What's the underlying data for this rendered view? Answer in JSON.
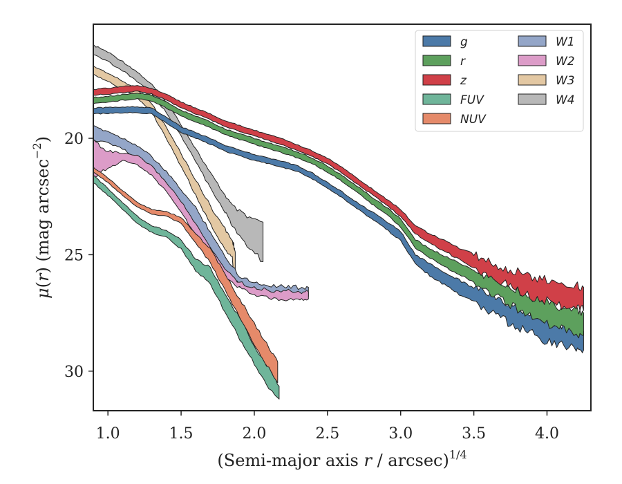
{
  "chart_data": {
    "type": "area",
    "title": "",
    "xlabel": "(Semi-major axis r / arcsec)",
    "xlabel_parts": {
      "prefix": "(Semi-major axis ",
      "var": "r",
      "suffix": " / arcsec)",
      "exponent": "1/4"
    },
    "ylabel": "μ(r) (mag arcsec⁻²)",
    "ylabel_parts": {
      "mu": "μ",
      "open": "(",
      "var": "r",
      "close": ") (mag arcsec",
      "exponent": "−2",
      "end": ")"
    },
    "xlim": [
      0.9,
      4.3
    ],
    "ylim": [
      31.7,
      15.1
    ],
    "y_inverted": true,
    "xticks": [
      1.0,
      1.5,
      2.0,
      2.5,
      3.0,
      3.5,
      4.0
    ],
    "xtick_labels": [
      "1.0",
      "1.5",
      "2.0",
      "2.5",
      "3.0",
      "3.5",
      "4.0"
    ],
    "yticks": [
      20,
      25,
      30
    ],
    "ytick_labels": [
      "20",
      "25",
      "30"
    ],
    "grid": false,
    "legend": {
      "placement": "top-right",
      "columns": 2
    },
    "series": [
      {
        "name": "g",
        "color": "#4c7aa8",
        "x": [
          0.9,
          1.0,
          1.1,
          1.2,
          1.3,
          1.4,
          1.5,
          1.6,
          1.7,
          1.8,
          1.9,
          2.0,
          2.1,
          2.2,
          2.3,
          2.4,
          2.5,
          2.6,
          2.7,
          2.8,
          2.9,
          3.0,
          3.1,
          3.2,
          3.3,
          3.4,
          3.5,
          3.6,
          3.7,
          3.8,
          3.9,
          4.0,
          4.1,
          4.2,
          4.25
        ],
        "lower": [
          18.7,
          18.68,
          18.65,
          18.64,
          18.7,
          19.1,
          19.5,
          19.75,
          20.0,
          20.3,
          20.5,
          20.7,
          20.85,
          21.0,
          21.2,
          21.5,
          21.9,
          22.3,
          22.75,
          23.15,
          23.55,
          24.0,
          25.0,
          25.4,
          25.75,
          26.1,
          26.4,
          26.7,
          27.0,
          27.3,
          27.55,
          27.8,
          28.0,
          28.2,
          28.3
        ],
        "upper": [
          18.95,
          18.93,
          18.9,
          18.9,
          18.95,
          19.35,
          19.75,
          20.0,
          20.25,
          20.55,
          20.75,
          20.95,
          21.1,
          21.25,
          21.45,
          21.75,
          22.15,
          22.55,
          23.0,
          23.45,
          23.9,
          24.4,
          25.4,
          25.9,
          26.3,
          26.7,
          27.0,
          27.4,
          27.8,
          28.1,
          28.4,
          28.7,
          28.9,
          29.0,
          29.1
        ]
      },
      {
        "name": "r",
        "color": "#5da05d",
        "x": [
          0.9,
          1.0,
          1.1,
          1.2,
          1.3,
          1.4,
          1.5,
          1.6,
          1.7,
          1.8,
          1.9,
          2.0,
          2.1,
          2.2,
          2.3,
          2.4,
          2.5,
          2.6,
          2.7,
          2.8,
          2.9,
          3.0,
          3.1,
          3.2,
          3.3,
          3.4,
          3.5,
          3.6,
          3.7,
          3.8,
          3.9,
          4.0,
          4.1,
          4.2,
          4.25
        ],
        "lower": [
          18.25,
          18.2,
          18.12,
          18.05,
          18.15,
          18.45,
          18.8,
          19.05,
          19.3,
          19.6,
          19.8,
          20.0,
          20.2,
          20.4,
          20.6,
          20.85,
          21.2,
          21.6,
          22.05,
          22.5,
          22.95,
          23.45,
          24.35,
          24.75,
          25.05,
          25.35,
          25.65,
          25.95,
          26.25,
          26.55,
          26.85,
          27.05,
          27.25,
          27.4,
          27.5
        ],
        "upper": [
          18.5,
          18.45,
          18.37,
          18.3,
          18.4,
          18.7,
          19.05,
          19.3,
          19.55,
          19.85,
          20.05,
          20.25,
          20.45,
          20.65,
          20.85,
          21.1,
          21.45,
          21.85,
          22.3,
          22.8,
          23.25,
          23.8,
          24.7,
          25.15,
          25.5,
          25.85,
          26.2,
          26.6,
          27.0,
          27.35,
          27.7,
          28.0,
          28.2,
          28.35,
          28.45
        ]
      },
      {
        "name": "z",
        "color": "#d04048",
        "x": [
          0.9,
          1.0,
          1.1,
          1.2,
          1.3,
          1.4,
          1.5,
          1.6,
          1.7,
          1.8,
          1.9,
          2.0,
          2.1,
          2.2,
          2.3,
          2.4,
          2.5,
          2.6,
          2.7,
          2.8,
          2.9,
          3.0,
          3.1,
          3.2,
          3.3,
          3.4,
          3.5,
          3.6,
          3.7,
          3.8,
          3.9,
          4.0,
          4.1,
          4.2,
          4.25
        ],
        "lower": [
          17.9,
          17.85,
          17.78,
          17.72,
          17.85,
          18.1,
          18.45,
          18.7,
          18.95,
          19.25,
          19.45,
          19.65,
          19.85,
          20.05,
          20.3,
          20.55,
          20.85,
          21.25,
          21.7,
          22.15,
          22.6,
          23.05,
          23.75,
          24.1,
          24.4,
          24.7,
          25.0,
          25.3,
          25.55,
          25.75,
          25.95,
          26.1,
          26.25,
          26.35,
          26.4
        ],
        "upper": [
          18.15,
          18.1,
          18.03,
          17.97,
          18.1,
          18.35,
          18.7,
          18.95,
          19.2,
          19.5,
          19.7,
          19.9,
          20.1,
          20.3,
          20.55,
          20.8,
          21.1,
          21.5,
          21.95,
          22.4,
          22.85,
          23.35,
          24.1,
          24.5,
          24.85,
          25.2,
          25.55,
          25.9,
          26.2,
          26.5,
          26.8,
          27.0,
          27.15,
          27.3,
          27.4
        ]
      },
      {
        "name": "FUV",
        "color": "#6fb59a",
        "x": [
          0.9,
          1.0,
          1.1,
          1.2,
          1.3,
          1.4,
          1.5,
          1.6,
          1.7,
          1.8,
          1.9,
          2.0,
          2.1,
          2.17
        ],
        "lower": [
          21.6,
          22.15,
          22.75,
          23.35,
          23.75,
          23.95,
          24.35,
          25.2,
          25.55,
          26.7,
          27.75,
          28.9,
          29.9,
          30.65
        ],
        "upper": [
          21.9,
          22.45,
          23.05,
          23.65,
          24.05,
          24.25,
          24.75,
          25.7,
          26.25,
          27.5,
          28.6,
          29.7,
          30.7,
          31.2
        ]
      },
      {
        "name": "NUV",
        "color": "#e58a6a",
        "x": [
          0.9,
          1.0,
          1.1,
          1.2,
          1.3,
          1.4,
          1.5,
          1.6,
          1.7,
          1.8,
          1.9,
          2.0,
          2.1,
          2.16
        ],
        "lower": [
          21.25,
          21.7,
          22.25,
          22.75,
          23.05,
          23.15,
          23.4,
          24.1,
          24.75,
          25.85,
          26.9,
          27.95,
          29.0,
          29.6
        ],
        "upper": [
          21.45,
          21.9,
          22.45,
          22.95,
          23.25,
          23.35,
          23.65,
          24.5,
          25.35,
          26.55,
          27.65,
          28.85,
          29.95,
          30.5
        ]
      },
      {
        "name": "W1",
        "color": "#94a6c8",
        "x": [
          0.9,
          1.0,
          1.1,
          1.2,
          1.3,
          1.4,
          1.5,
          1.6,
          1.7,
          1.8,
          1.9,
          2.0,
          2.1,
          2.2,
          2.3,
          2.37
        ],
        "lower": [
          19.5,
          19.7,
          20.0,
          20.3,
          20.8,
          21.45,
          22.2,
          23.0,
          24.0,
          25.1,
          25.9,
          26.2,
          26.3,
          26.35,
          26.4,
          26.4
        ],
        "upper": [
          20.1,
          20.2,
          20.45,
          20.85,
          21.4,
          22.0,
          22.8,
          23.9,
          24.9,
          25.7,
          26.3,
          26.6,
          26.7,
          26.75,
          26.8,
          26.8
        ]
      },
      {
        "name": "W2",
        "color": "#dc9cc8",
        "x": [
          0.9,
          1.0,
          1.1,
          1.2,
          1.3,
          1.4,
          1.5,
          1.6,
          1.7,
          1.8,
          1.9,
          2.0,
          2.1,
          2.2,
          2.3,
          2.37
        ],
        "lower": [
          20.1,
          20.55,
          20.65,
          20.75,
          21.2,
          21.9,
          22.7,
          23.7,
          24.7,
          25.6,
          26.2,
          26.4,
          26.55,
          26.55,
          26.6,
          26.6
        ],
        "upper": [
          21.6,
          21.35,
          20.95,
          21.15,
          21.6,
          22.3,
          23.15,
          24.2,
          25.25,
          25.95,
          26.4,
          26.7,
          26.85,
          26.9,
          26.9,
          26.9
        ]
      },
      {
        "name": "W3",
        "color": "#e3c8a3",
        "x": [
          0.9,
          1.0,
          1.1,
          1.2,
          1.3,
          1.4,
          1.5,
          1.6,
          1.7,
          1.8,
          1.85,
          1.86,
          1.87
        ],
        "lower": [
          16.9,
          17.2,
          17.55,
          17.9,
          18.5,
          19.55,
          20.65,
          21.8,
          22.9,
          23.9,
          24.4,
          24.6,
          24.9
        ],
        "upper": [
          17.25,
          17.55,
          17.9,
          18.25,
          18.9,
          20.0,
          21.2,
          22.45,
          23.7,
          24.8,
          25.1,
          25.9,
          26.0
        ]
      },
      {
        "name": "W4",
        "color": "#b8b8b8",
        "x": [
          0.9,
          1.0,
          1.1,
          1.2,
          1.3,
          1.4,
          1.5,
          1.6,
          1.7,
          1.8,
          1.85,
          1.95,
          2.06
        ],
        "lower": [
          16.0,
          16.3,
          16.7,
          17.15,
          17.7,
          18.45,
          19.4,
          20.45,
          21.5,
          22.45,
          22.9,
          23.4,
          23.6
        ],
        "upper": [
          16.4,
          16.7,
          17.1,
          17.55,
          18.1,
          18.9,
          19.9,
          21.0,
          22.15,
          23.15,
          23.75,
          24.6,
          25.3
        ]
      }
    ]
  }
}
